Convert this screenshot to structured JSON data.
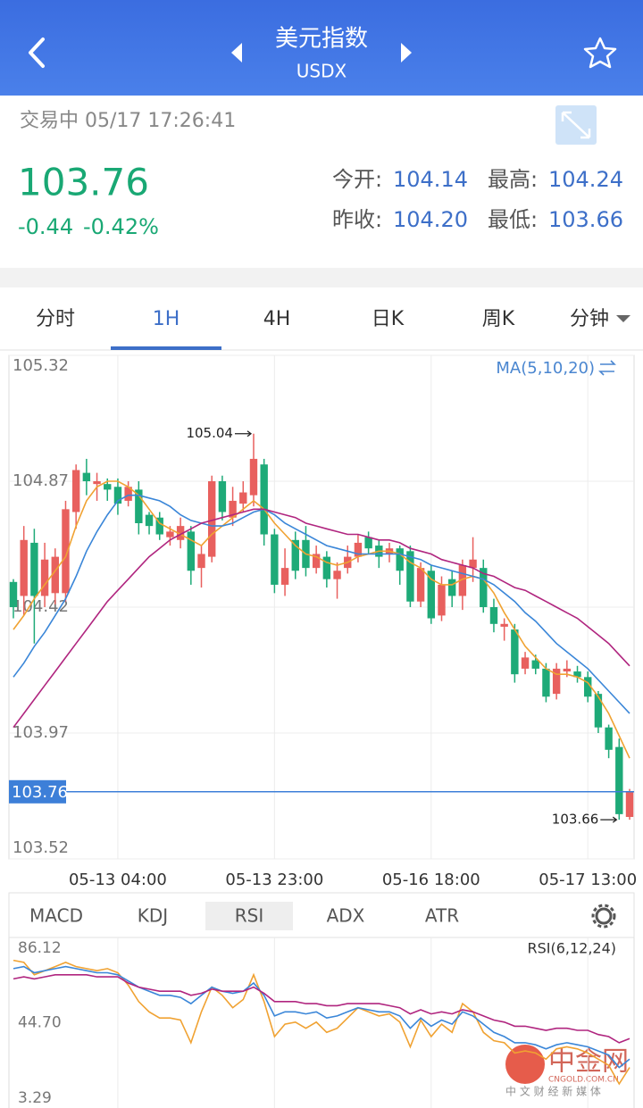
{
  "header": {
    "title": "美元指数",
    "symbol": "USDX"
  },
  "quote": {
    "status": "交易中 05/17 17:26:41",
    "price": "103.76",
    "change": "-0.44",
    "change_pct": "-0.42%",
    "open_label": "今开:",
    "open": "104.14",
    "high_label": "最高:",
    "high": "104.24",
    "prev_label": "昨收:",
    "prev": "104.20",
    "low_label": "最低:",
    "low": "103.66"
  },
  "tabs": [
    "分时",
    "1H",
    "4H",
    "日K",
    "周K",
    "分钟"
  ],
  "active_tab": 1,
  "indicator_tabs": [
    "MACD",
    "KDJ",
    "RSI",
    "ADX",
    "ATR"
  ],
  "active_indicator": 2,
  "watermark": {
    "logo": "中金网",
    "domain": "CNGOLD.COM.CN",
    "slogan": "中 文 财 经 新 媒 体"
  },
  "chart_data": [
    {
      "type": "candlestick",
      "legend": "MA(5,10,20)",
      "categories": [
        null,
        null,
        null,
        null,
        null,
        null,
        null,
        null,
        null,
        null,
        "05-13 04:00",
        null,
        null,
        null,
        null,
        null,
        null,
        null,
        null,
        null,
        null,
        null,
        null,
        null,
        null,
        "05-13 23:00",
        null,
        null,
        null,
        null,
        null,
        null,
        null,
        null,
        null,
        null,
        null,
        null,
        null,
        null,
        "05-16 18:00",
        null,
        null,
        null,
        null,
        null,
        null,
        null,
        null,
        null,
        null,
        null,
        null,
        null,
        null,
        "05-17 13:00",
        null,
        null,
        null,
        null
      ],
      "open": [
        104.51,
        104.46,
        104.65,
        104.46,
        104.47,
        104.47,
        104.76,
        104.9,
        104.86,
        104.86,
        104.85,
        104.8,
        104.84,
        104.75,
        104.74,
        104.67,
        104.66,
        104.69,
        104.56,
        104.6,
        104.87,
        104.74,
        104.79,
        104.82,
        104.93,
        104.68,
        104.5,
        104.66,
        104.66,
        104.56,
        104.6,
        104.52,
        104.56,
        104.6,
        104.67,
        104.64,
        104.61,
        104.63,
        104.62,
        104.44,
        104.55,
        104.39,
        104.52,
        104.46,
        104.56,
        104.56,
        104.42,
        104.35,
        104.34,
        104.2,
        104.23,
        104.2,
        104.11,
        104.19,
        104.19,
        104.17,
        104.11,
        103.99,
        103.92,
        103.67
      ],
      "high": [
        104.52,
        104.71,
        104.7,
        104.65,
        104.63,
        104.8,
        104.93,
        104.95,
        104.9,
        104.88,
        104.88,
        104.87,
        104.87,
        104.76,
        104.76,
        104.71,
        104.74,
        104.71,
        104.64,
        104.89,
        104.89,
        104.85,
        104.87,
        105.04,
        104.95,
        104.7,
        104.63,
        104.69,
        104.71,
        104.64,
        104.62,
        104.58,
        104.64,
        104.68,
        104.69,
        104.66,
        104.65,
        104.64,
        104.64,
        104.58,
        104.57,
        104.53,
        104.55,
        104.59,
        104.67,
        104.59,
        104.45,
        104.38,
        104.36,
        104.26,
        104.25,
        104.22,
        104.22,
        104.23,
        104.21,
        104.19,
        104.12,
        104.0,
        103.95,
        103.77
      ],
      "low": [
        104.38,
        104.39,
        104.29,
        104.42,
        104.43,
        104.44,
        104.7,
        104.82,
        104.8,
        104.8,
        104.75,
        104.78,
        104.68,
        104.68,
        104.66,
        104.64,
        104.63,
        104.5,
        104.49,
        104.58,
        104.73,
        104.71,
        104.76,
        104.78,
        104.64,
        104.47,
        104.46,
        104.52,
        104.53,
        104.54,
        104.49,
        104.45,
        104.54,
        104.58,
        104.61,
        104.56,
        104.58,
        104.5,
        104.42,
        104.42,
        104.36,
        104.37,
        104.42,
        104.41,
        104.51,
        104.4,
        104.33,
        104.3,
        104.15,
        104.18,
        104.18,
        104.08,
        104.09,
        104.17,
        104.15,
        104.08,
        103.97,
        103.88,
        103.66,
        103.66
      ],
      "close": [
        104.42,
        104.66,
        104.46,
        104.59,
        104.6,
        104.77,
        104.91,
        104.87,
        104.87,
        104.84,
        104.79,
        104.85,
        104.72,
        104.71,
        104.68,
        104.69,
        104.71,
        104.55,
        104.61,
        104.87,
        104.76,
        104.8,
        104.83,
        104.95,
        104.68,
        104.5,
        104.56,
        104.55,
        104.56,
        104.61,
        104.52,
        104.55,
        104.6,
        104.65,
        104.63,
        104.6,
        104.63,
        104.55,
        104.44,
        104.56,
        104.38,
        104.5,
        104.46,
        104.57,
        104.59,
        104.42,
        104.36,
        104.36,
        104.18,
        104.24,
        104.2,
        104.1,
        104.2,
        104.2,
        104.17,
        104.1,
        103.99,
        103.91,
        103.68,
        103.76
      ],
      "up_color": "#e8605e",
      "down_color": "#1eaa78",
      "series": [
        {
          "color": "#f0a232",
          "values": [
            104.34,
            104.39,
            104.45,
            104.5,
            104.55,
            104.6,
            104.71,
            104.8,
            104.85,
            104.87,
            104.87,
            104.85,
            104.82,
            104.77,
            104.72,
            104.7,
            104.68,
            104.66,
            104.64,
            104.68,
            104.71,
            104.74,
            104.77,
            104.8,
            104.77,
            104.72,
            104.68,
            104.64,
            104.61,
            104.6,
            104.58,
            104.57,
            104.58,
            104.6,
            104.61,
            104.62,
            104.62,
            104.61,
            104.58,
            104.56,
            104.52,
            104.5,
            104.5,
            104.52,
            104.53,
            104.52,
            104.47,
            104.4,
            104.34,
            104.28,
            104.24,
            104.2,
            104.18,
            104.18,
            104.17,
            104.15,
            104.1,
            104.04,
            103.96,
            103.88
          ]
        },
        {
          "color": "#3a86d8",
          "values": [
            104.17,
            104.22,
            104.28,
            104.33,
            104.39,
            104.45,
            104.53,
            104.62,
            104.69,
            104.75,
            104.8,
            104.82,
            104.82,
            104.81,
            104.8,
            104.78,
            104.75,
            104.73,
            104.72,
            104.71,
            104.71,
            104.72,
            104.74,
            104.76,
            104.77,
            104.75,
            104.72,
            104.7,
            104.68,
            104.66,
            104.64,
            104.63,
            104.62,
            104.61,
            104.61,
            104.61,
            104.61,
            104.61,
            104.6,
            104.59,
            104.57,
            104.56,
            104.55,
            104.54,
            104.53,
            104.52,
            104.5,
            104.47,
            104.44,
            104.4,
            104.37,
            104.33,
            104.29,
            104.26,
            104.23,
            104.2,
            104.16,
            104.12,
            104.08,
            104.04
          ]
        },
        {
          "color": "#b0257f",
          "values": [
            103.99,
            104.04,
            104.09,
            104.14,
            104.19,
            104.24,
            104.29,
            104.34,
            104.39,
            104.44,
            104.48,
            104.52,
            104.56,
            104.6,
            104.63,
            104.66,
            104.68,
            104.7,
            104.72,
            104.73,
            104.74,
            104.75,
            104.76,
            104.77,
            104.77,
            104.76,
            104.75,
            104.74,
            104.72,
            104.71,
            104.7,
            104.69,
            104.68,
            104.68,
            104.67,
            104.66,
            104.66,
            104.65,
            104.63,
            104.62,
            104.61,
            104.59,
            104.58,
            104.57,
            104.56,
            104.54,
            104.53,
            104.51,
            104.49,
            104.48,
            104.46,
            104.44,
            104.42,
            104.4,
            104.38,
            104.35,
            104.32,
            104.29,
            104.25,
            104.21
          ]
        }
      ],
      "high_label": "105.04",
      "low_label": "103.66",
      "last_price": 103.76,
      "ylim": [
        103.52,
        105.32
      ],
      "yticks": [
        105.32,
        104.87,
        104.42,
        103.97,
        103.52
      ],
      "grid": true
    },
    {
      "type": "line",
      "legend": "RSI(6,12,24)",
      "series": [
        {
          "color": "#f0a232",
          "values": [
            75,
            74,
            68,
            70,
            72,
            74,
            72,
            71,
            70,
            71,
            69,
            63,
            55,
            50,
            47,
            47,
            46,
            35,
            50,
            62,
            58,
            52,
            56,
            68,
            55,
            38,
            44,
            45,
            42,
            45,
            40,
            42,
            47,
            52,
            50,
            48,
            49,
            45,
            33,
            46,
            38,
            44,
            40,
            54,
            50,
            40,
            36,
            35,
            30,
            31,
            30,
            27,
            32,
            33,
            32,
            30,
            27,
            24,
            15,
            23
          ]
        },
        {
          "color": "#3a86d8",
          "values": [
            71,
            72,
            69,
            70,
            71,
            72,
            71,
            70,
            69,
            69,
            68,
            65,
            62,
            60,
            58,
            58,
            57,
            54,
            58,
            62,
            60,
            59,
            60,
            64,
            58,
            48,
            50,
            50,
            49,
            50,
            47,
            48,
            50,
            52,
            51,
            50,
            50,
            48,
            42,
            47,
            43,
            46,
            44,
            50,
            48,
            44,
            40,
            38,
            35,
            35,
            34,
            32,
            34,
            35,
            34,
            33,
            31,
            29,
            23,
            27
          ]
        },
        {
          "color": "#b0257f",
          "values": [
            66,
            67,
            66,
            67,
            68,
            68,
            68,
            68,
            67,
            67,
            67,
            64,
            62,
            61,
            60,
            60,
            60,
            58,
            59,
            61,
            60,
            60,
            60,
            62,
            59,
            55,
            55,
            55,
            54,
            54,
            53,
            53,
            54,
            54,
            54,
            54,
            53,
            52,
            49,
            51,
            49,
            50,
            49,
            51,
            50,
            48,
            46,
            45,
            43,
            43,
            42,
            41,
            42,
            42,
            41,
            41,
            39,
            38,
            35,
            37
          ]
        }
      ],
      "ylim": [
        3.29,
        86.12
      ],
      "yticks": [
        86.12,
        {
          "value": 44.7,
          "label": "44.70"
        },
        3.29
      ]
    }
  ]
}
